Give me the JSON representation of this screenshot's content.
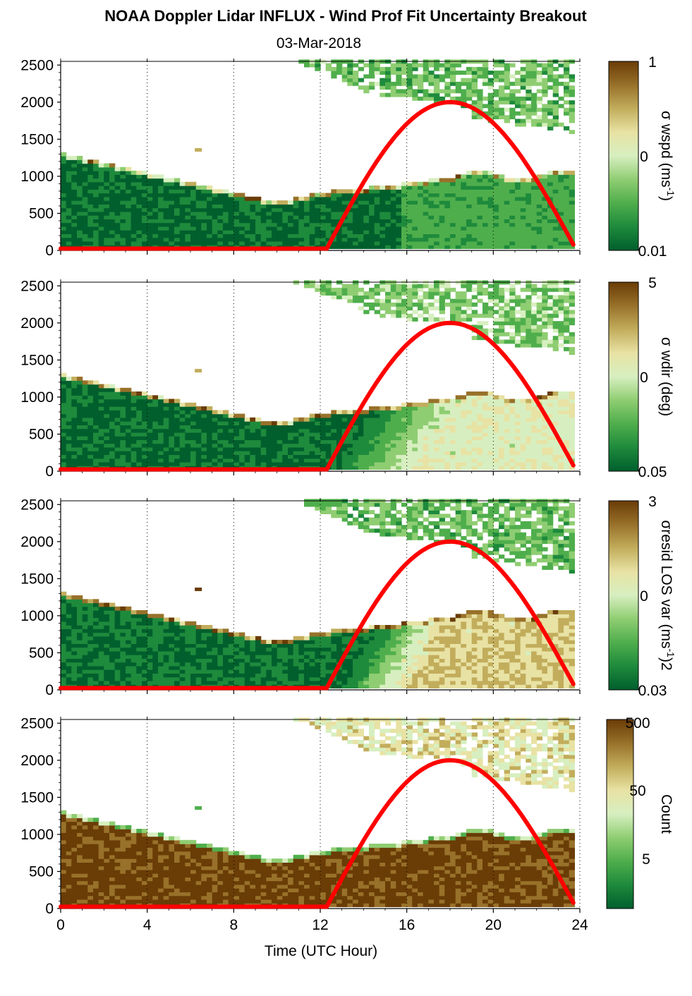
{
  "title": "NOAA Doppler Lidar INFLUX - Wind Prof Fit Uncertainty Breakout",
  "date": "03-Mar-2018",
  "colors": {
    "sun_curve": "#ff0000",
    "ramp": [
      "#005f2d",
      "#1e8a3c",
      "#4fae4c",
      "#8fcd72",
      "#d7efc0",
      "#e8e2a4",
      "#c2ad5c",
      "#98712a",
      "#6a3c06"
    ]
  },
  "chart_data": [
    {
      "type": "heatmap",
      "panel": "wspd",
      "xlabel": "Time (UTC Hour)",
      "xlim": [
        0,
        24
      ],
      "xticks": [
        0,
        4,
        8,
        12,
        16,
        20,
        24
      ],
      "ylim": [
        0,
        2550
      ],
      "yticks": [
        0,
        500,
        1000,
        1500,
        2000,
        2500
      ],
      "grid": "vertical dotted",
      "colorbar": {
        "label": "σ wspd (ms-1)",
        "label_base": "σ wspd (ms",
        "label_sup": "-1",
        "label_end": ")",
        "scale": "log",
        "ticks": [
          "1",
          "0",
          "0.01"
        ]
      },
      "overlay": {
        "name": "sun elevation curve",
        "rise_hour": 12.3,
        "peak_hour": 18.0,
        "set_hour": 23.8,
        "peak_height": 2000
      }
    },
    {
      "type": "heatmap",
      "panel": "wdir",
      "xlabel": "Time (UTC Hour)",
      "xlim": [
        0,
        24
      ],
      "xticks": [
        0,
        4,
        8,
        12,
        16,
        20,
        24
      ],
      "ylim": [
        0,
        2550
      ],
      "yticks": [
        0,
        500,
        1000,
        1500,
        2000,
        2500
      ],
      "grid": "vertical dotted",
      "colorbar": {
        "label": "σ wdir (deg)",
        "label_base": "σ wdir (deg)",
        "label_sup": "",
        "label_end": "",
        "scale": "log",
        "ticks": [
          "5",
          "0",
          "0.05"
        ]
      },
      "overlay": {
        "name": "sun elevation curve",
        "rise_hour": 12.3,
        "peak_hour": 18.0,
        "set_hour": 23.8,
        "peak_height": 2000
      }
    },
    {
      "type": "heatmap",
      "panel": "resid",
      "xlabel": "Time (UTC Hour)",
      "xlim": [
        0,
        24
      ],
      "xticks": [
        0,
        4,
        8,
        12,
        16,
        20,
        24
      ],
      "ylim": [
        0,
        2550
      ],
      "yticks": [
        0,
        500,
        1000,
        1500,
        2000,
        2500
      ],
      "grid": "vertical dotted",
      "colorbar": {
        "label": "σresid LOS var (ms-1)2",
        "label_base": "σresid LOS var (ms",
        "label_sup": "-1",
        "label_end": ")2",
        "scale": "log",
        "ticks": [
          "3",
          "0",
          "0.03"
        ]
      },
      "overlay": {
        "name": "sun elevation curve",
        "rise_hour": 12.3,
        "peak_hour": 18.0,
        "set_hour": 23.8,
        "peak_height": 2000
      }
    },
    {
      "type": "heatmap",
      "panel": "count",
      "xlabel": "Time (UTC Hour)",
      "xlim": [
        0,
        24
      ],
      "xticks": [
        0,
        4,
        8,
        12,
        16,
        20,
        24
      ],
      "ylim": [
        0,
        2550
      ],
      "yticks": [
        0,
        500,
        1000,
        1500,
        2000,
        2500
      ],
      "grid": "vertical dotted",
      "colorbar": {
        "label": "Count",
        "label_base": "Count",
        "label_sup": "",
        "label_end": "",
        "scale": "log",
        "ticks": [
          "500",
          "50",
          "5"
        ]
      },
      "overlay": {
        "name": "sun elevation curve",
        "rise_hour": 12.3,
        "peak_hour": 18.0,
        "set_hour": 23.8,
        "peak_height": 2000
      }
    }
  ]
}
